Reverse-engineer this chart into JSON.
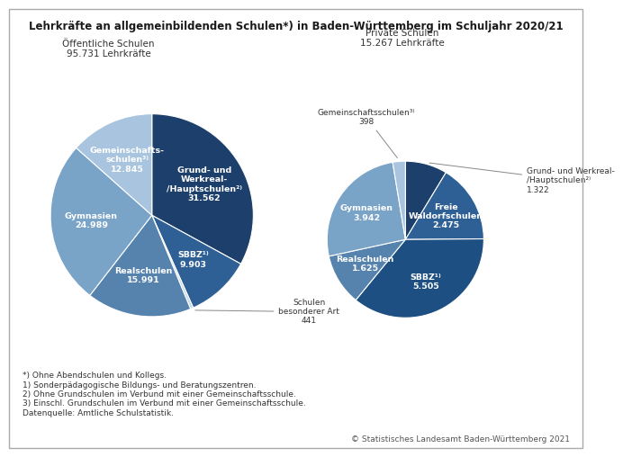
{
  "title": "Lehrkräfte an allgemeinbildenden Schulen*) in Baden-Württemberg im Schuljahr 2020/21",
  "left_title": "Öffentliche Schulen\n95.731 Lehrkräfte",
  "right_title": "Private Schulen\n15.267 Lehrkräfte",
  "left_slices": [
    {
      "label": "Grund- und\nWerkreal-\n/Hauptschulen²⁾\n31.562",
      "value": 31562,
      "color": "#1d3f6b"
    },
    {
      "label": "SBBZ¹⁾\n9.903",
      "value": 9903,
      "color": "#2e6096"
    },
    {
      "label": "Schulen\nbesonderer Art\n441",
      "value": 441,
      "color": "#c5d8e8",
      "outside": true
    },
    {
      "label": "Realschulen\n15.991",
      "value": 15991,
      "color": "#5583ae"
    },
    {
      "label": "Gymnasien\n24.989",
      "value": 24989,
      "color": "#7aa3c8"
    },
    {
      "label": "Gemeinschafts-\nschulen³⁾\n12.845",
      "value": 12845,
      "color": "#a8c4de"
    }
  ],
  "right_slices": [
    {
      "label": "Grund- und Werkreal-\n/Hauptschulen²⁾\n1.322",
      "value": 1322,
      "color": "#1d3f6b",
      "outside": true,
      "outside_side": "right"
    },
    {
      "label": "Freie\nWaldorfschulen\n2.475",
      "value": 2475,
      "color": "#2e6096"
    },
    {
      "label": "SBBZ¹⁾\n5.505",
      "value": 5505,
      "color": "#1d4f82"
    },
    {
      "label": "Realschulen\n1.625",
      "value": 1625,
      "color": "#5583ae"
    },
    {
      "label": "Gymnasien\n3.942",
      "value": 3942,
      "color": "#7aa3c8"
    },
    {
      "label": "Gemeinschaftsschulen³⁾\n398",
      "value": 398,
      "color": "#a8c4de",
      "outside": true,
      "outside_side": "left"
    }
  ],
  "footnotes": [
    "*) Ohne Abendschulen und Kollegs.",
    "1) Sonderpädagogische Bildungs- und Beratungszentren.",
    "2) Ohne Grundschulen im Verbund mit einer Gemeinschaftsschule.",
    "3) Einschl. Grundschulen im Verbund mit einer Gemeinschaftsschule.",
    "Datenquelle: Amtliche Schulstatistik."
  ],
  "copyright": "© Statistisches Landesamt Baden-Württemberg 2021",
  "background_color": "#ffffff"
}
